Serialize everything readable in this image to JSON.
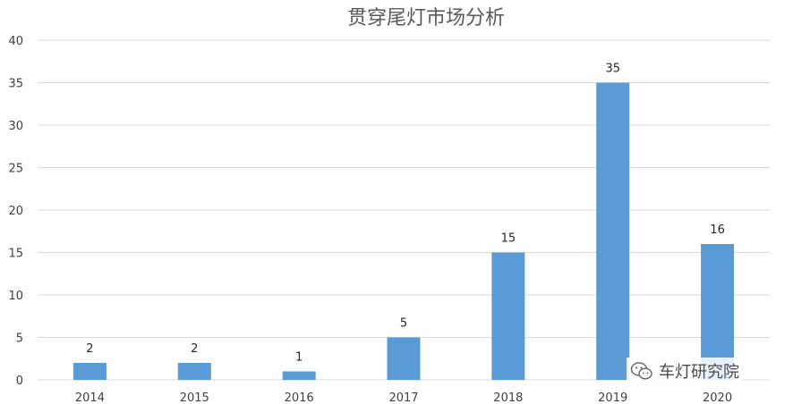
{
  "chart_data": {
    "type": "bar",
    "title": "贯穿尾灯市场分析",
    "categories": [
      "2014",
      "2015",
      "2016",
      "2017",
      "2018",
      "2019",
      "2020"
    ],
    "values": [
      2,
      2,
      1,
      5,
      15,
      35,
      16
    ],
    "ylim": [
      0,
      40
    ],
    "yticks": [
      0,
      5,
      10,
      15,
      20,
      25,
      30,
      35,
      40
    ],
    "grid": true,
    "bar_color": "#5b9bd5",
    "data_labels": true
  },
  "watermark": {
    "text": "车灯研究院",
    "icon": "wechat-icon"
  }
}
